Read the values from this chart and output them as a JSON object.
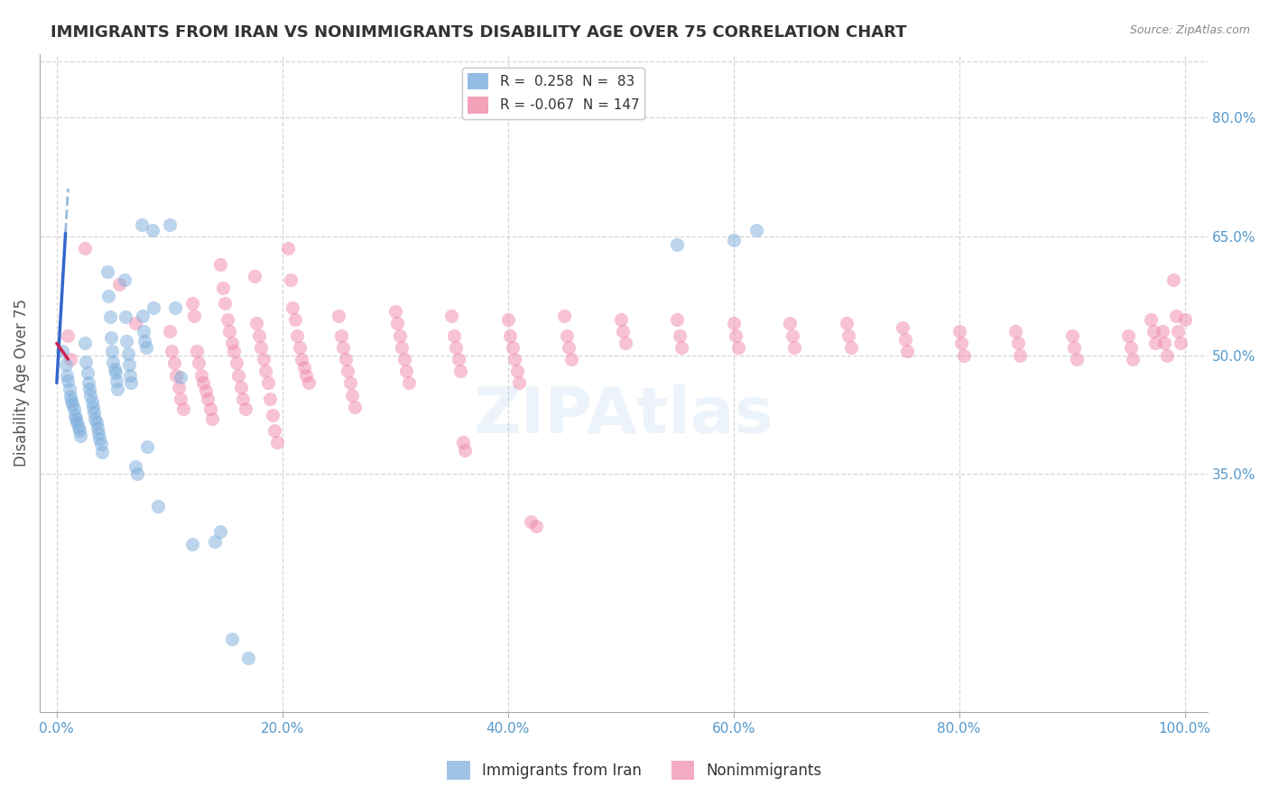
{
  "title": "IMMIGRANTS FROM IRAN VS NONIMMIGRANTS DISABILITY AGE OVER 75 CORRELATION CHART",
  "source": "Source: ZipAtlas.com",
  "ylabel": "Disability Age Over 75",
  "ytick_labels": [
    "35.0%",
    "50.0%",
    "65.0%",
    "80.0%"
  ],
  "ytick_values": [
    35.0,
    50.0,
    65.0,
    80.0
  ],
  "legend1_r": "0.258",
  "legend1_n": "83",
  "legend2_r": "-0.067",
  "legend2_n": "147",
  "legend_bottom": [
    "Immigrants from Iran",
    "Nonimmigrants"
  ],
  "color_blue": "#7aacdc",
  "color_pink": "#f088a8",
  "regression_blue_x0": 0.0,
  "regression_blue_y0": 46.5,
  "regression_blue_x1": 0.78,
  "regression_blue_y1": 65.5,
  "dash_blue_x0": 0.78,
  "dash_blue_y0": 65.5,
  "dash_blue_x1": 1.0,
  "dash_blue_y1": 71.0,
  "regression_pink_x0": 0.0,
  "regression_pink_y0": 51.5,
  "regression_pink_x1": 1.0,
  "regression_pink_y1": 49.5,
  "blue_scatter": [
    [
      0.5,
      50.5
    ],
    [
      0.8,
      48.8
    ],
    [
      0.9,
      47.5
    ],
    [
      1.0,
      46.8
    ],
    [
      1.1,
      45.8
    ],
    [
      1.2,
      44.8
    ],
    [
      1.3,
      44.3
    ],
    [
      1.4,
      43.8
    ],
    [
      1.5,
      43.2
    ],
    [
      1.6,
      42.5
    ],
    [
      1.7,
      42.0
    ],
    [
      1.8,
      41.5
    ],
    [
      1.9,
      41.0
    ],
    [
      2.0,
      40.5
    ],
    [
      2.1,
      39.8
    ],
    [
      2.5,
      51.5
    ],
    [
      2.6,
      49.2
    ],
    [
      2.7,
      47.8
    ],
    [
      2.8,
      46.5
    ],
    [
      2.9,
      45.8
    ],
    [
      3.0,
      45.0
    ],
    [
      3.1,
      44.2
    ],
    [
      3.2,
      43.5
    ],
    [
      3.3,
      42.8
    ],
    [
      3.4,
      42.0
    ],
    [
      3.5,
      41.5
    ],
    [
      3.6,
      40.8
    ],
    [
      3.7,
      40.2
    ],
    [
      3.8,
      39.5
    ],
    [
      3.9,
      38.8
    ],
    [
      4.0,
      37.8
    ],
    [
      4.5,
      60.5
    ],
    [
      4.6,
      57.5
    ],
    [
      4.7,
      54.8
    ],
    [
      4.8,
      52.2
    ],
    [
      4.9,
      50.5
    ],
    [
      5.0,
      49.2
    ],
    [
      5.1,
      48.2
    ],
    [
      5.2,
      47.8
    ],
    [
      5.3,
      46.8
    ],
    [
      5.4,
      45.8
    ],
    [
      6.0,
      59.5
    ],
    [
      6.1,
      54.8
    ],
    [
      6.2,
      51.8
    ],
    [
      6.3,
      50.2
    ],
    [
      6.4,
      48.8
    ],
    [
      6.5,
      47.5
    ],
    [
      6.6,
      46.5
    ],
    [
      7.0,
      36.0
    ],
    [
      7.1,
      35.0
    ],
    [
      7.5,
      66.5
    ],
    [
      7.6,
      55.0
    ],
    [
      7.7,
      53.0
    ],
    [
      7.8,
      51.8
    ],
    [
      7.9,
      51.0
    ],
    [
      8.0,
      38.5
    ],
    [
      8.5,
      65.8
    ],
    [
      8.6,
      56.0
    ],
    [
      9.0,
      31.0
    ],
    [
      10.0,
      66.5
    ],
    [
      10.5,
      56.0
    ],
    [
      11.0,
      47.2
    ],
    [
      12.0,
      26.2
    ],
    [
      14.0,
      26.5
    ],
    [
      14.5,
      27.8
    ],
    [
      15.5,
      14.2
    ],
    [
      17.0,
      11.8
    ],
    [
      55.0,
      64.0
    ],
    [
      60.0,
      64.5
    ],
    [
      62.0,
      65.8
    ]
  ],
  "pink_scatter": [
    [
      1.0,
      52.5
    ],
    [
      1.2,
      49.5
    ],
    [
      2.5,
      63.5
    ],
    [
      5.5,
      59.0
    ],
    [
      7.0,
      54.0
    ],
    [
      10.0,
      53.0
    ],
    [
      10.2,
      50.5
    ],
    [
      10.4,
      49.0
    ],
    [
      10.6,
      47.5
    ],
    [
      10.8,
      46.0
    ],
    [
      11.0,
      44.5
    ],
    [
      11.2,
      43.2
    ],
    [
      12.0,
      56.5
    ],
    [
      12.2,
      55.0
    ],
    [
      12.4,
      50.5
    ],
    [
      12.6,
      49.0
    ],
    [
      12.8,
      47.5
    ],
    [
      13.0,
      46.5
    ],
    [
      13.2,
      45.5
    ],
    [
      13.4,
      44.5
    ],
    [
      13.6,
      43.2
    ],
    [
      13.8,
      42.0
    ],
    [
      14.5,
      61.5
    ],
    [
      14.7,
      58.5
    ],
    [
      14.9,
      56.5
    ],
    [
      15.1,
      54.5
    ],
    [
      15.3,
      53.0
    ],
    [
      15.5,
      51.5
    ],
    [
      15.7,
      50.5
    ],
    [
      15.9,
      49.0
    ],
    [
      16.1,
      47.5
    ],
    [
      16.3,
      46.0
    ],
    [
      16.5,
      44.5
    ],
    [
      16.7,
      43.2
    ],
    [
      17.5,
      60.0
    ],
    [
      17.7,
      54.0
    ],
    [
      17.9,
      52.5
    ],
    [
      18.1,
      51.0
    ],
    [
      18.3,
      49.5
    ],
    [
      18.5,
      48.0
    ],
    [
      18.7,
      46.5
    ],
    [
      18.9,
      44.5
    ],
    [
      19.1,
      42.5
    ],
    [
      19.3,
      40.5
    ],
    [
      19.5,
      39.0
    ],
    [
      20.5,
      63.5
    ],
    [
      20.7,
      59.5
    ],
    [
      20.9,
      56.0
    ],
    [
      21.1,
      54.5
    ],
    [
      21.3,
      52.5
    ],
    [
      21.5,
      51.0
    ],
    [
      21.7,
      49.5
    ],
    [
      21.9,
      48.5
    ],
    [
      22.1,
      47.5
    ],
    [
      22.3,
      46.5
    ],
    [
      25.0,
      55.0
    ],
    [
      25.2,
      52.5
    ],
    [
      25.4,
      51.0
    ],
    [
      25.6,
      49.5
    ],
    [
      25.8,
      48.0
    ],
    [
      26.0,
      46.5
    ],
    [
      26.2,
      45.0
    ],
    [
      26.4,
      43.5
    ],
    [
      30.0,
      55.5
    ],
    [
      30.2,
      54.0
    ],
    [
      30.4,
      52.5
    ],
    [
      30.6,
      51.0
    ],
    [
      30.8,
      49.5
    ],
    [
      31.0,
      48.0
    ],
    [
      31.2,
      46.5
    ],
    [
      35.0,
      55.0
    ],
    [
      35.2,
      52.5
    ],
    [
      35.4,
      51.0
    ],
    [
      35.6,
      49.5
    ],
    [
      35.8,
      48.0
    ],
    [
      36.0,
      39.0
    ],
    [
      36.2,
      38.0
    ],
    [
      40.0,
      54.5
    ],
    [
      40.2,
      52.5
    ],
    [
      40.4,
      51.0
    ],
    [
      40.6,
      49.5
    ],
    [
      40.8,
      48.0
    ],
    [
      41.0,
      46.5
    ],
    [
      42.5,
      28.5
    ],
    [
      45.0,
      55.0
    ],
    [
      45.2,
      52.5
    ],
    [
      45.4,
      51.0
    ],
    [
      45.6,
      49.5
    ],
    [
      42.0,
      29.0
    ],
    [
      50.0,
      54.5
    ],
    [
      50.2,
      53.0
    ],
    [
      50.4,
      51.5
    ],
    [
      55.0,
      54.5
    ],
    [
      55.2,
      52.5
    ],
    [
      55.4,
      51.0
    ],
    [
      60.0,
      54.0
    ],
    [
      60.2,
      52.5
    ],
    [
      60.4,
      51.0
    ],
    [
      65.0,
      54.0
    ],
    [
      65.2,
      52.5
    ],
    [
      65.4,
      51.0
    ],
    [
      70.0,
      54.0
    ],
    [
      70.2,
      52.5
    ],
    [
      70.4,
      51.0
    ],
    [
      75.0,
      53.5
    ],
    [
      75.2,
      52.0
    ],
    [
      75.4,
      50.5
    ],
    [
      80.0,
      53.0
    ],
    [
      80.2,
      51.5
    ],
    [
      80.4,
      50.0
    ],
    [
      85.0,
      53.0
    ],
    [
      85.2,
      51.5
    ],
    [
      85.4,
      50.0
    ],
    [
      90.0,
      52.5
    ],
    [
      90.2,
      51.0
    ],
    [
      90.4,
      49.5
    ],
    [
      95.0,
      52.5
    ],
    [
      95.2,
      51.0
    ],
    [
      95.4,
      49.5
    ],
    [
      97.0,
      54.5
    ],
    [
      97.2,
      53.0
    ],
    [
      97.4,
      51.5
    ],
    [
      98.0,
      53.0
    ],
    [
      98.2,
      51.5
    ],
    [
      98.4,
      50.0
    ],
    [
      99.0,
      59.5
    ],
    [
      99.2,
      55.0
    ],
    [
      99.4,
      53.0
    ],
    [
      99.6,
      51.5
    ],
    [
      100.0,
      54.5
    ]
  ],
  "xlim": [
    -1.5,
    102.0
  ],
  "ylim": [
    5.0,
    88.0
  ],
  "xtick_positions": [
    0,
    20,
    40,
    60,
    80,
    100
  ],
  "xtick_labels": [
    "0.0%",
    "20.0%",
    "40.0%",
    "60.0%",
    "80.0%",
    "100.0%"
  ],
  "background_color": "#ffffff",
  "grid_color": "#cccccc",
  "title_color": "#333333",
  "axis_label_color": "#5599cc",
  "watermark": "ZIPAtlas"
}
